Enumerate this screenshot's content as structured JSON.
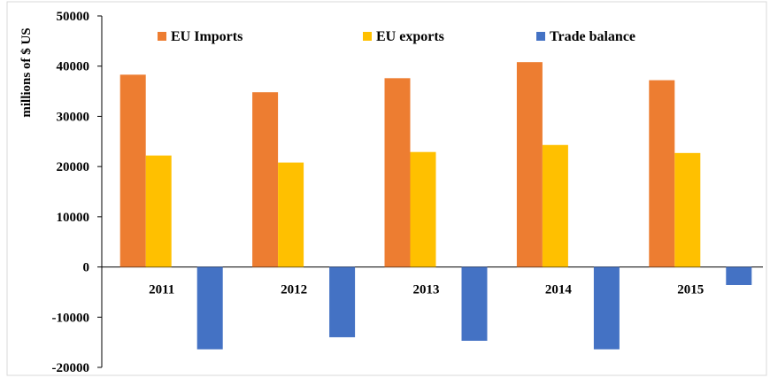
{
  "chart_data": {
    "type": "bar",
    "ylabel": "millions  of $ US",
    "xlabel": "",
    "ylim": [
      -20000,
      50000
    ],
    "yticks": [
      -20000,
      -10000,
      0,
      10000,
      20000,
      30000,
      40000,
      50000
    ],
    "categories": [
      "2011",
      "2012",
      "2013",
      "2014",
      "2015"
    ],
    "legend_position": "top",
    "grid": false,
    "series": [
      {
        "name": "EU Imports",
        "color": "#ED7D31",
        "values": [
          38300,
          34800,
          37600,
          40800,
          37200
        ]
      },
      {
        "name": "EU exports",
        "color": "#FFC000",
        "values": [
          22200,
          20800,
          22900,
          24300,
          22700
        ]
      },
      {
        "name": "Trade balance",
        "color": "#4472C4",
        "values": [
          -16400,
          -14000,
          -14700,
          -16400,
          -3600
        ]
      }
    ]
  }
}
